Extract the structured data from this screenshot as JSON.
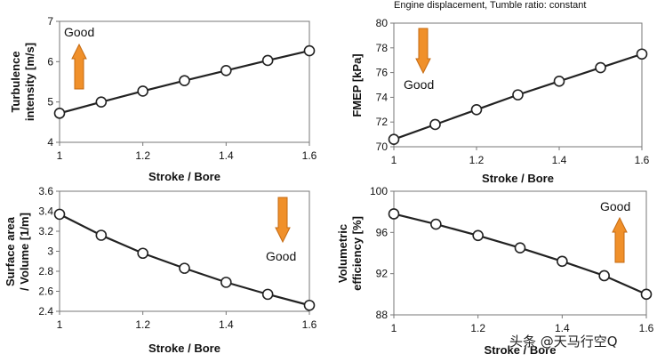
{
  "header_note": "Engine displacement, Tumble  ratio: constant",
  "watermark": "头条 @天马行空Q",
  "colors": {
    "arrow": "#f0902a",
    "arrow_edge": "#c46a12",
    "line": "#222222",
    "marker_fill": "#ffffff"
  },
  "chart_data": [
    {
      "type": "line",
      "id": "turbulence",
      "title": "",
      "ylabel_lines": [
        "Turbulence",
        "intensity [m/s]"
      ],
      "xlabel": "Stroke / Bore",
      "x": [
        1.0,
        1.1,
        1.2,
        1.3,
        1.4,
        1.5,
        1.6
      ],
      "values": [
        4.72,
        5.0,
        5.27,
        5.53,
        5.78,
        6.03,
        6.27
      ],
      "xlim": [
        1.0,
        1.6
      ],
      "ylim": [
        4,
        7
      ],
      "xticks": [
        1,
        1.2,
        1.4,
        1.6
      ],
      "xtick_labels": [
        "1",
        "1.2",
        "1.4",
        "1.6"
      ],
      "yticks": [
        4,
        5,
        6,
        7
      ],
      "ytick_labels": [
        "4",
        "5",
        "6",
        "7"
      ],
      "annotation": {
        "text": "Good",
        "arrow": "up",
        "placement": "top-left"
      }
    },
    {
      "type": "line",
      "id": "fmep",
      "title": "",
      "ylabel_lines": [
        "FMEP [kPa]"
      ],
      "xlabel": "Stroke / Bore",
      "x": [
        1.0,
        1.1,
        1.2,
        1.3,
        1.4,
        1.5,
        1.6
      ],
      "values": [
        70.6,
        71.8,
        73.0,
        74.2,
        75.3,
        76.4,
        77.5
      ],
      "xlim": [
        1.0,
        1.6
      ],
      "ylim": [
        70,
        80
      ],
      "xticks": [
        1,
        1.2,
        1.4,
        1.6
      ],
      "xtick_labels": [
        "1",
        "1.2",
        "1.4",
        "1.6"
      ],
      "yticks": [
        70,
        72,
        74,
        76,
        78,
        80
      ],
      "ytick_labels": [
        "70",
        "72",
        "74",
        "76",
        "78",
        "80"
      ],
      "annotation": {
        "text": "Good",
        "arrow": "down",
        "placement": "top-left"
      }
    },
    {
      "type": "line",
      "id": "surface_volume",
      "title": "",
      "ylabel_lines": [
        "Surface area",
        "/ Volume  [1/m]"
      ],
      "xlabel": "Stroke / Bore",
      "x": [
        1.0,
        1.1,
        1.2,
        1.3,
        1.4,
        1.5,
        1.6
      ],
      "values": [
        3.37,
        3.16,
        2.98,
        2.83,
        2.69,
        2.57,
        2.46
      ],
      "xlim": [
        1.0,
        1.6
      ],
      "ylim": [
        2.4,
        3.6
      ],
      "xticks": [
        1,
        1.2,
        1.4,
        1.6
      ],
      "xtick_labels": [
        "1",
        "1.2",
        "1.4",
        "1.6"
      ],
      "yticks": [
        2.4,
        2.6,
        2.8,
        3.0,
        3.2,
        3.4,
        3.6
      ],
      "ytick_labels": [
        "2.4",
        "2.6",
        "2.8",
        "3",
        "3.2",
        "3.4",
        "3.6"
      ],
      "annotation": {
        "text": "Good",
        "arrow": "down",
        "placement": "top-right"
      }
    },
    {
      "type": "line",
      "id": "volumetric_efficiency",
      "title": "",
      "ylabel_lines": [
        "Volumetric",
        "efficiency [%]"
      ],
      "xlabel": "Stroke / Bore",
      "x": [
        1.0,
        1.1,
        1.2,
        1.3,
        1.4,
        1.5,
        1.6
      ],
      "values": [
        97.8,
        96.8,
        95.7,
        94.5,
        93.2,
        91.8,
        90.0
      ],
      "xlim": [
        1.0,
        1.6
      ],
      "ylim": [
        88,
        100
      ],
      "xticks": [
        1,
        1.2,
        1.4,
        1.6
      ],
      "xtick_labels": [
        "1",
        "1.2",
        "1.4",
        "1.6"
      ],
      "yticks": [
        88,
        92,
        96,
        100
      ],
      "ytick_labels": [
        "88",
        "92",
        "96",
        "100"
      ],
      "annotation": {
        "text": "Good",
        "arrow": "up",
        "placement": "top-right"
      }
    }
  ]
}
